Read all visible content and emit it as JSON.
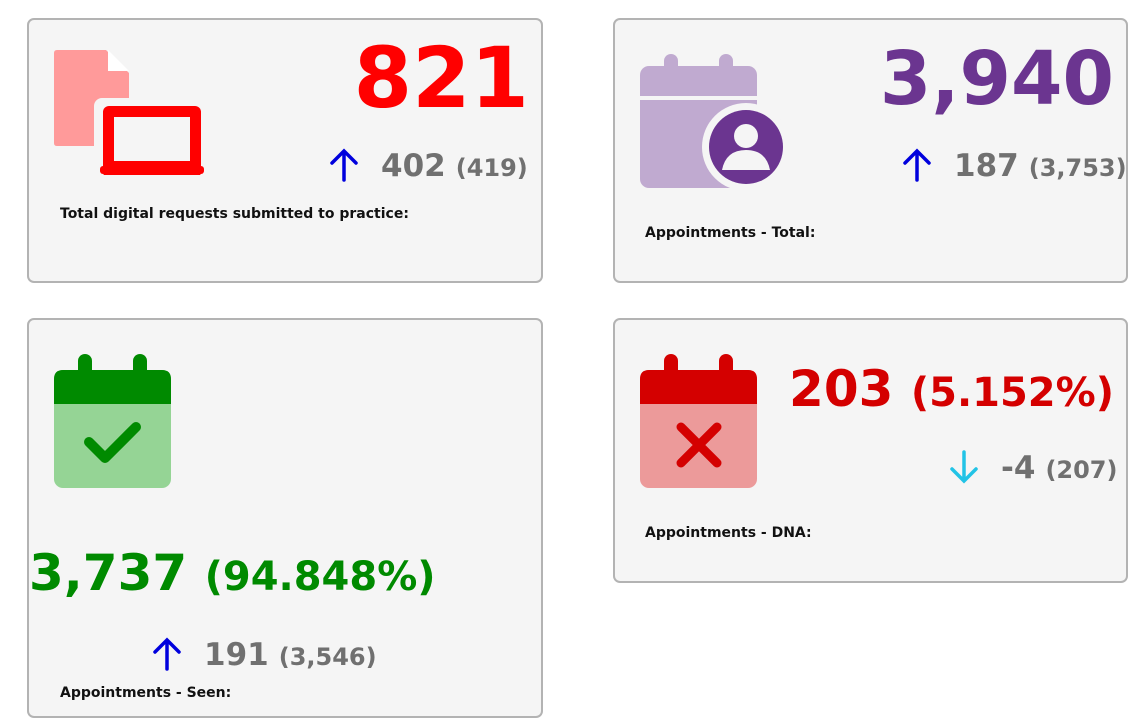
{
  "cards": [
    {
      "label": "Total digital requests submitted to practice:",
      "value": "821",
      "change": "402",
      "previous": "(419)",
      "trend": "up",
      "icon": "digital-request-icon",
      "color": "#ff0000",
      "icon_color": "#ff9a9a"
    },
    {
      "label": "Appointments - Total:",
      "value": "3,940",
      "change": "187",
      "previous": "(3,753)",
      "trend": "up",
      "icon": "calendar-user-icon",
      "color": "#6b3590",
      "icon_color": "#c0aad0"
    },
    {
      "label": "Appointments - Seen:",
      "value": "3,737",
      "percent": "(94.848%)",
      "change": "191",
      "previous": "(3,546)",
      "trend": "up",
      "icon": "calendar-check-icon",
      "color": "#008a00",
      "icon_color": "#95d495"
    },
    {
      "label": "Appointments - DNA:",
      "value": "203",
      "percent": "(5.152%)",
      "change": "-4",
      "previous": "(207)",
      "trend": "down",
      "icon": "calendar-x-icon",
      "color": "#d40000",
      "icon_color": "#ec9a9a"
    }
  ],
  "colors": {
    "arrow_up": "#0000dd",
    "arrow_down": "#22c3e6",
    "delta_text": "#707070"
  }
}
